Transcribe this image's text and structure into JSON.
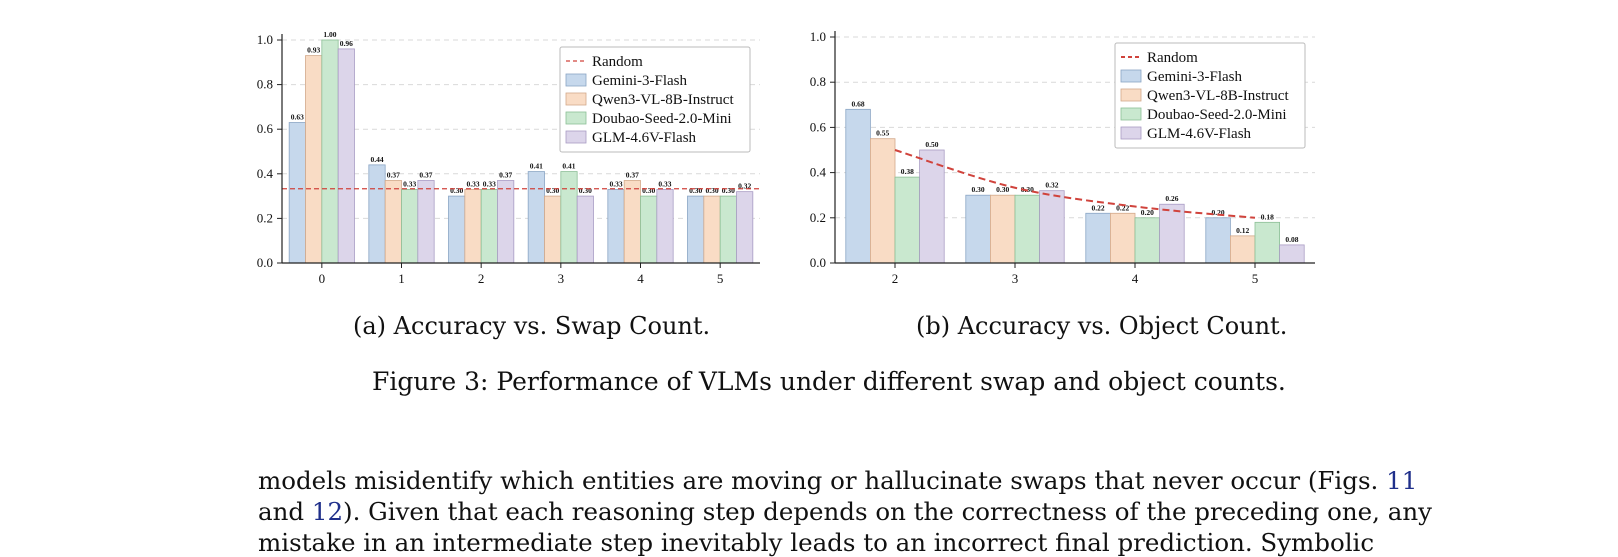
{
  "charts_palette": {
    "series_colors": [
      "#c6d8ec",
      "#f9dcc5",
      "#c9e8cf",
      "#dcd5ea"
    ],
    "series_edges": [
      "#8aa5c4",
      "#d3a98a",
      "#8cbf96",
      "#a99cc4"
    ],
    "random_color": "#d0433c"
  },
  "chart_data": [
    {
      "type": "bar",
      "categories": [
        "0",
        "1",
        "2",
        "3",
        "4",
        "5"
      ],
      "ylim": [
        0,
        1.0
      ],
      "yticks": [
        "0.0",
        "0.2",
        "0.4",
        "0.6",
        "0.8",
        "1.0"
      ],
      "grid": true,
      "legend_placement": "top-right",
      "series": [
        {
          "name": "Gemini-3-Flash",
          "values": [
            0.63,
            0.44,
            0.3,
            0.41,
            0.33,
            0.3
          ]
        },
        {
          "name": "Qwen3-VL-8B-Instruct",
          "values": [
            0.93,
            0.37,
            0.33,
            0.3,
            0.37,
            0.3
          ]
        },
        {
          "name": "Doubao-Seed-2.0-Mini",
          "values": [
            1.0,
            0.33,
            0.33,
            0.41,
            0.3,
            0.3
          ]
        },
        {
          "name": "GLM-4.6V-Flash",
          "values": [
            0.96,
            0.37,
            0.37,
            0.3,
            0.33,
            0.32
          ]
        }
      ],
      "value_labels": [
        [
          "0.63",
          "0.44",
          "0.30",
          "0.41",
          "0.33",
          "0.30"
        ],
        [
          "0.93",
          "0.37",
          "0.33",
          "0.30",
          "0.37",
          "0.30"
        ],
        [
          "1.00",
          "0.33",
          "0.33",
          "0.41",
          "0.30",
          "0.30"
        ],
        [
          "0.96",
          "0.37",
          "0.37",
          "0.30",
          "0.33",
          "0.32"
        ]
      ],
      "random": {
        "name": "Random",
        "values": [
          0.333,
          0.333,
          0.333,
          0.333,
          0.333,
          0.333
        ]
      }
    },
    {
      "type": "bar",
      "categories": [
        "2",
        "3",
        "4",
        "5"
      ],
      "ylim": [
        0,
        1.0
      ],
      "yticks": [
        "0.0",
        "0.2",
        "0.4",
        "0.6",
        "0.8",
        "1.0"
      ],
      "grid": true,
      "legend_placement": "top-right",
      "series": [
        {
          "name": "Gemini-3-Flash",
          "values": [
            0.68,
            0.3,
            0.22,
            0.2
          ]
        },
        {
          "name": "Qwen3-VL-8B-Instruct",
          "values": [
            0.55,
            0.3,
            0.22,
            0.12
          ]
        },
        {
          "name": "Doubao-Seed-2.0-Mini",
          "values": [
            0.38,
            0.3,
            0.2,
            0.18
          ]
        },
        {
          "name": "GLM-4.6V-Flash",
          "values": [
            0.5,
            0.32,
            0.26,
            0.08
          ]
        }
      ],
      "value_labels": [
        [
          "0.68",
          "0.30",
          "0.22",
          "0.20"
        ],
        [
          "0.55",
          "0.30",
          "0.22",
          "0.12"
        ],
        [
          "0.38",
          "0.30",
          "0.20",
          "0.18"
        ],
        [
          "0.50",
          "0.32",
          "0.26",
          "0.08"
        ]
      ],
      "random": {
        "name": "Random",
        "values": [
          0.5,
          0.333,
          0.25,
          0.2
        ]
      }
    }
  ],
  "captions": {
    "a": "(a) Accuracy vs. Swap Count.",
    "b": "(b) Accuracy vs. Object Count.",
    "figure": "Figure 3: Performance of VLMs under different swap and object counts."
  },
  "body": {
    "line1_a": "models misidentify which entities are moving or hallucinate swaps that never occur (Figs. ",
    "ref1": "11",
    "line2_a": "and ",
    "ref2": "12",
    "line2_b": "). Given that each reasoning step depends on the correctness of the preceding one, any",
    "line3": "mistake in an intermediate step inevitably leads to an incorrect final prediction. Symbolic"
  }
}
